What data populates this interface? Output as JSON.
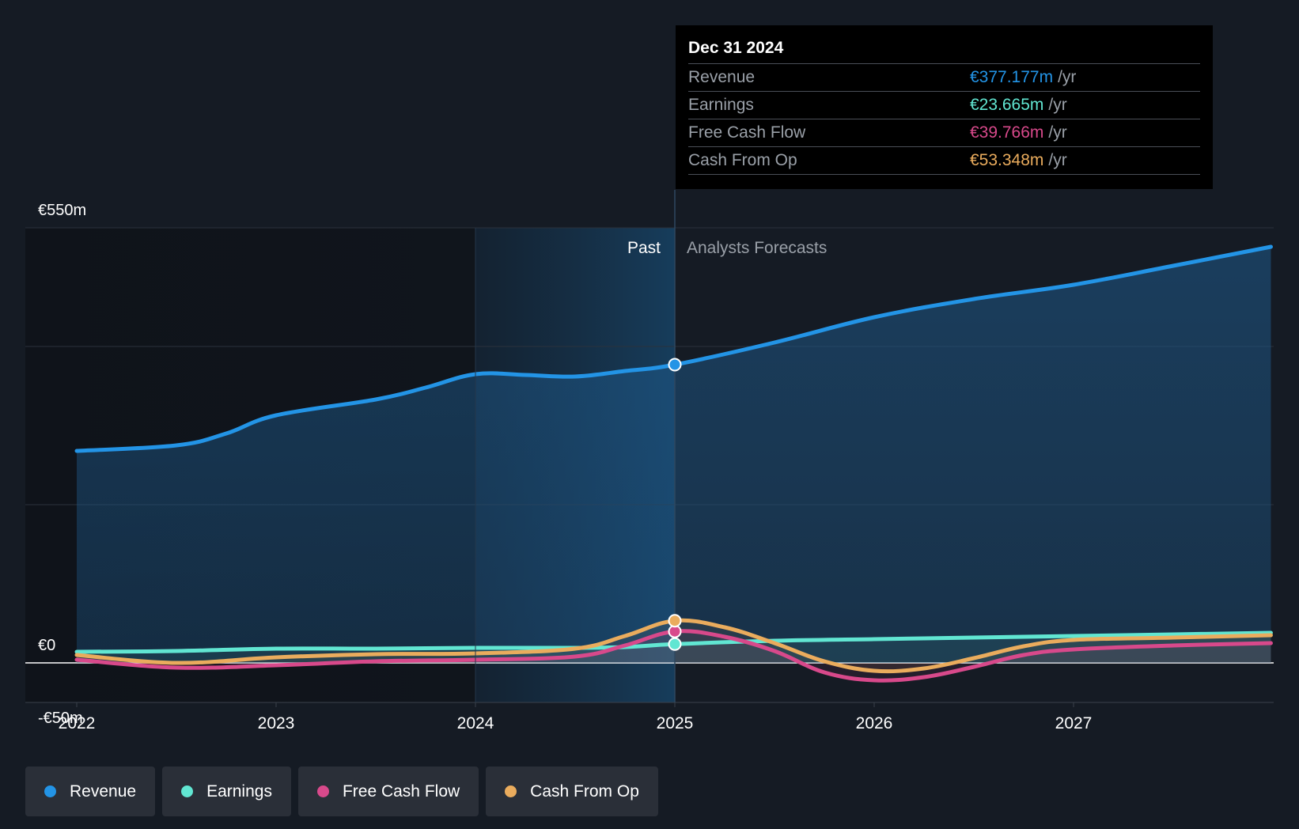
{
  "tooltip": {
    "date": "Dec 31 2024",
    "rows": [
      {
        "label": "Revenue",
        "value": "€377.177m",
        "unit": "/yr",
        "color": "#2394e6"
      },
      {
        "label": "Earnings",
        "value": "€23.665m",
        "unit": "/yr",
        "color": "#61e6d2"
      },
      {
        "label": "Free Cash Flow",
        "value": "€39.766m",
        "unit": "/yr",
        "color": "#d8498b"
      },
      {
        "label": "Cash From Op",
        "value": "€53.348m",
        "unit": "/yr",
        "color": "#eaac5d"
      }
    ]
  },
  "legend": [
    {
      "label": "Revenue",
      "color": "#2394e6"
    },
    {
      "label": "Earnings",
      "color": "#61e6d2"
    },
    {
      "label": "Free Cash Flow",
      "color": "#d8498b"
    },
    {
      "label": "Cash From Op",
      "color": "#eaac5d"
    }
  ],
  "chart_data": {
    "type": "line",
    "title": "",
    "xlabel": "",
    "ylabel": "",
    "y_tick_labels": [
      "€550m",
      "€0",
      "-€50m"
    ],
    "y_ticks": [
      550,
      0,
      -50
    ],
    "ylim": [
      -50,
      550
    ],
    "xlim": [
      2021.75,
      2027.99
    ],
    "x_ticks": [
      2022,
      2023,
      2024,
      2025,
      2026,
      2027
    ],
    "x_tick_labels": [
      "2022",
      "2023",
      "2024",
      "2025",
      "2026",
      "2027"
    ],
    "divider_x": 2025,
    "highlight_start_x": 2024,
    "past_label": "Past",
    "forecast_label": "Analysts Forecasts",
    "marker_x": 2025,
    "gridlines": [
      550,
      400,
      200
    ],
    "series": [
      {
        "name": "Revenue",
        "color": "#2394e6",
        "x": [
          2022,
          2022.5,
          2022.75,
          2023,
          2023.5,
          2023.75,
          2024,
          2024.25,
          2024.5,
          2024.75,
          2025,
          2025.5,
          2026,
          2026.5,
          2027,
          2027.5,
          2027.99
        ],
        "values": [
          268,
          275,
          290,
          313,
          333,
          348,
          365,
          364,
          362,
          369,
          377,
          405,
          437,
          460,
          478,
          502,
          526
        ]
      },
      {
        "name": "Earnings",
        "color": "#61e6d2",
        "x": [
          2022,
          2022.5,
          2023,
          2023.5,
          2024,
          2024.5,
          2024.75,
          2025,
          2025.5,
          2026,
          2026.5,
          2027,
          2027.5,
          2027.99
        ],
        "values": [
          14,
          15,
          18,
          18,
          19,
          19,
          20,
          23.7,
          28,
          30,
          32,
          34,
          36,
          38
        ]
      },
      {
        "name": "Free Cash Flow",
        "color": "#d8498b",
        "x": [
          2022,
          2022.5,
          2023,
          2023.5,
          2024,
          2024.5,
          2024.75,
          2025,
          2025.25,
          2025.5,
          2025.75,
          2026,
          2026.25,
          2026.5,
          2026.75,
          2027,
          2027.5,
          2027.99
        ],
        "values": [
          4,
          -6,
          -3,
          2,
          4,
          8,
          22,
          39.8,
          33,
          15,
          -12,
          -22,
          -18,
          -5,
          10,
          17,
          22,
          25
        ]
      },
      {
        "name": "Cash From Op",
        "color": "#eaac5d",
        "x": [
          2022,
          2022.5,
          2023,
          2023.5,
          2024,
          2024.5,
          2024.75,
          2025,
          2025.25,
          2025.5,
          2025.75,
          2026,
          2026.25,
          2026.5,
          2026.75,
          2027,
          2027.5,
          2027.99
        ],
        "values": [
          10,
          0,
          7,
          11,
          12,
          18,
          34,
          53.3,
          45,
          25,
          2,
          -10,
          -7,
          6,
          21,
          29,
          32,
          35
        ]
      }
    ]
  }
}
